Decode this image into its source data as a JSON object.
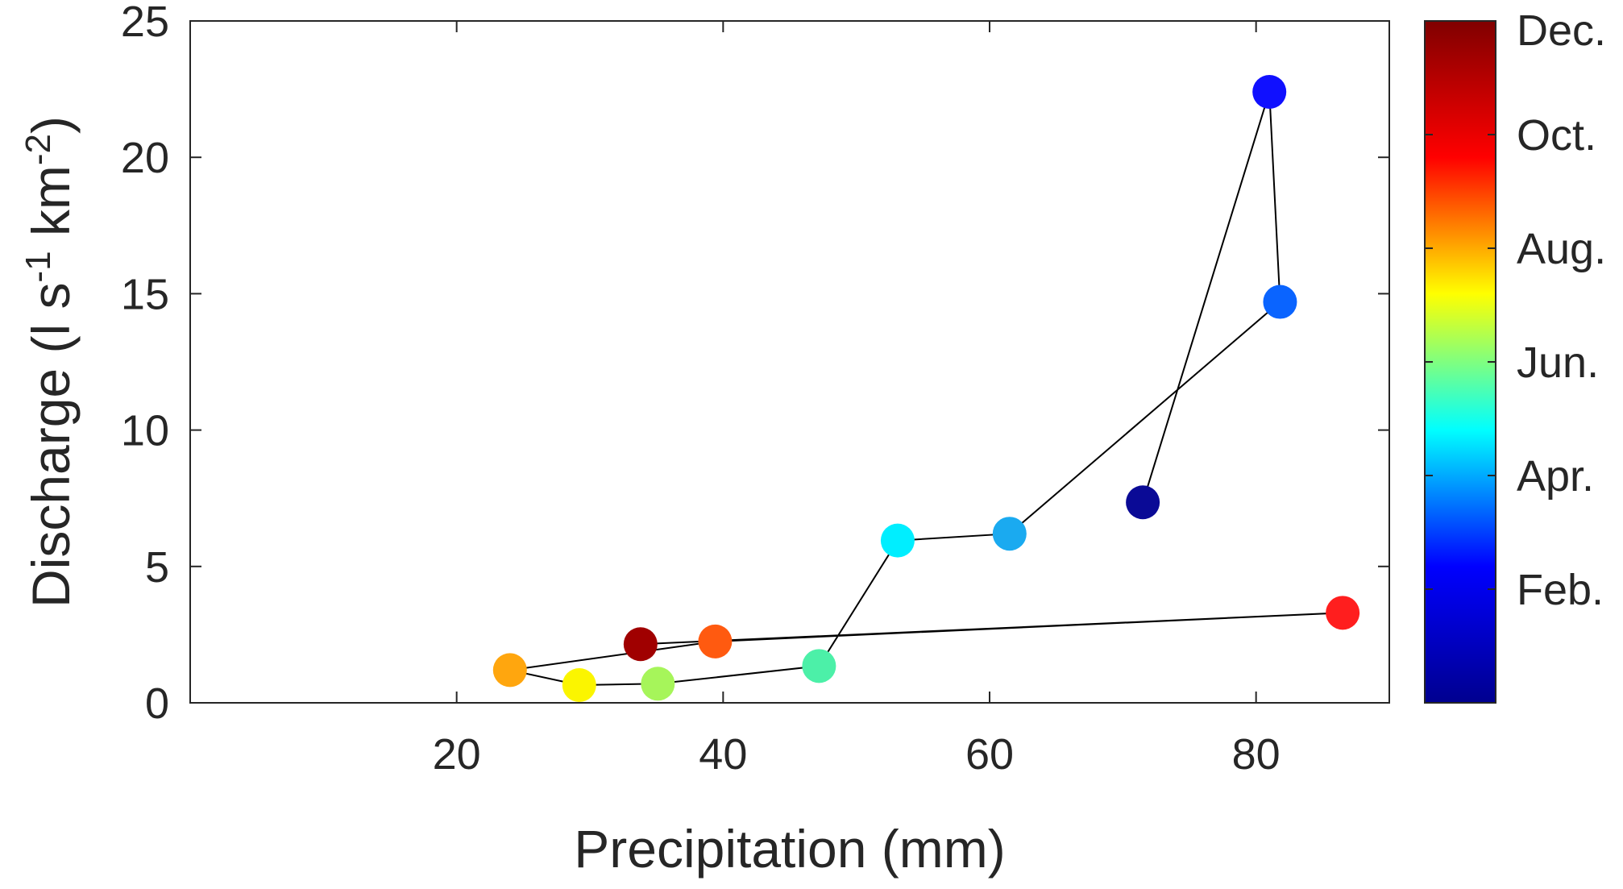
{
  "chart_data": {
    "type": "scatter",
    "title": "",
    "xlabel": "Precipitation (mm)",
    "ylabel": {
      "text": "Discharge (l s",
      "sup1": "-1",
      "mid": " km",
      "sup2": "-2",
      "end": ")"
    },
    "xlim": [
      0,
      90
    ],
    "ylim": [
      0,
      25
    ],
    "xticks": [
      20,
      40,
      60,
      80
    ],
    "yticks": [
      0,
      5,
      10,
      15,
      20,
      25
    ],
    "grid": false,
    "connected": true,
    "line_color": "#000000",
    "points": [
      {
        "month": 1,
        "x": 71.5,
        "y": 7.35,
        "color": "#0a0a96"
      },
      {
        "month": 2,
        "x": 81.0,
        "y": 22.4,
        "color": "#1010ff"
      },
      {
        "month": 3,
        "x": 81.8,
        "y": 14.7,
        "color": "#0a64ff"
      },
      {
        "month": 4,
        "x": 61.5,
        "y": 6.2,
        "color": "#1aaaf0"
      },
      {
        "month": 5,
        "x": 53.1,
        "y": 5.95,
        "color": "#00eeff"
      },
      {
        "month": 6,
        "x": 47.2,
        "y": 1.35,
        "color": "#4cf0a8"
      },
      {
        "month": 7,
        "x": 35.1,
        "y": 0.7,
        "color": "#a6f55a"
      },
      {
        "month": 8,
        "x": 29.2,
        "y": 0.65,
        "color": "#fbf500"
      },
      {
        "month": 9,
        "x": 24.0,
        "y": 1.2,
        "color": "#ffa60e"
      },
      {
        "month": 10,
        "x": 39.4,
        "y": 2.25,
        "color": "#ff5a10"
      },
      {
        "month": 11,
        "x": 86.5,
        "y": 3.3,
        "color": "#ff1e1e"
      },
      {
        "month": 12,
        "x": 33.8,
        "y": 2.15,
        "color": "#a00000"
      }
    ],
    "colorbar": {
      "labels": [
        "Dec.",
        "Oct.",
        "Aug.",
        "Jun.",
        "Apr.",
        "Feb."
      ],
      "label_positions_month": [
        12,
        10,
        8,
        6,
        4,
        2
      ],
      "range_month": [
        0,
        12
      ],
      "colormap": [
        "#00008f",
        "#0000ff",
        "#00ffff",
        "#ffff00",
        "#ff0000",
        "#800000"
      ]
    }
  }
}
